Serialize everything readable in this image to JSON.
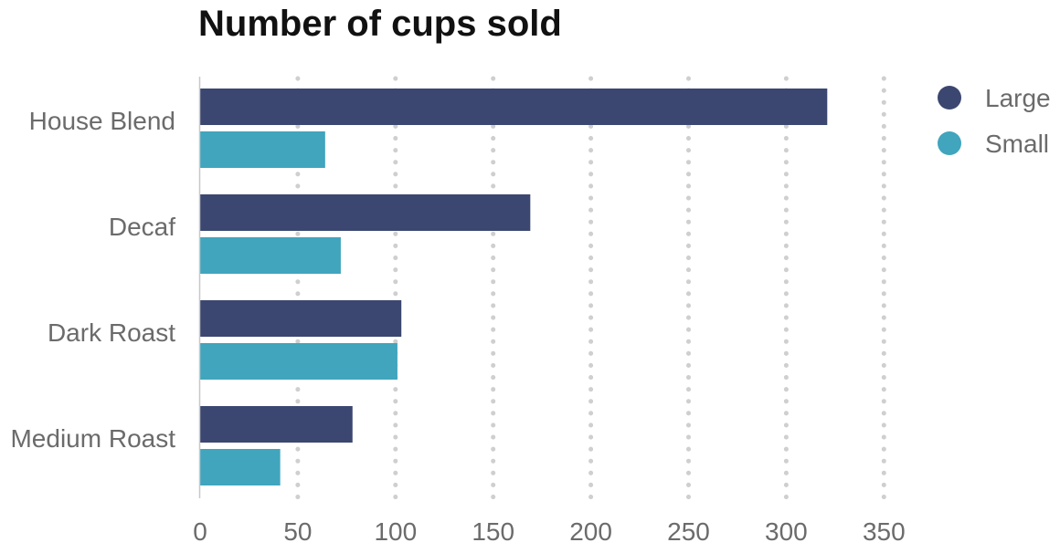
{
  "chart_data": {
    "type": "bar",
    "orientation": "horizontal",
    "title": "Number of cups sold",
    "categories": [
      "House Blend",
      "Decaf",
      "Dark Roast",
      "Medium Roast"
    ],
    "series": [
      {
        "name": "Large",
        "color": "#3b4770",
        "values": [
          321,
          169,
          103,
          78
        ]
      },
      {
        "name": "Small",
        "color": "#40a5bd",
        "values": [
          64,
          72,
          101,
          41
        ]
      }
    ],
    "xticks": [
      "0",
      "50",
      "100",
      "150",
      "200",
      "250",
      "300",
      "350"
    ],
    "xlim": [
      0,
      350
    ],
    "grid": "vertical-dotted",
    "legend_position": "top-right",
    "xlabel": "",
    "ylabel": ""
  },
  "colors": {
    "grid": "#cfcfcf",
    "axis": "#c8c8c8",
    "label_text": "#6b6b6b",
    "title_text": "#111111"
  }
}
